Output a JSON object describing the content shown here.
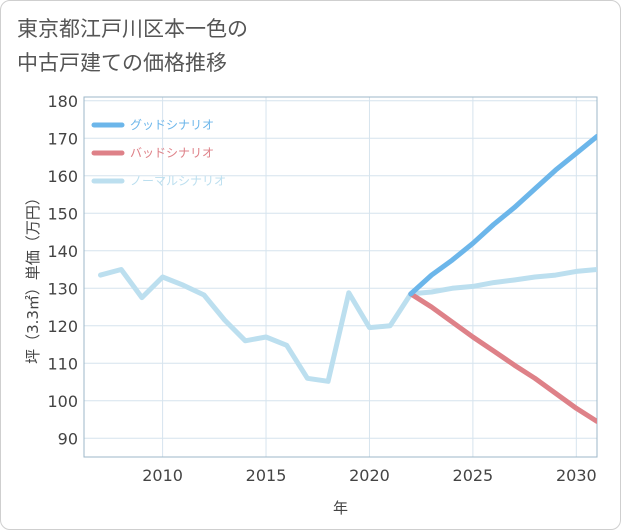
{
  "title_line1": "東京都江戸川区本一色の",
  "title_line2": "中古戸建ての価格推移",
  "chart_data": {
    "type": "line",
    "xlabel": "年",
    "ylabel": "坪（3.3㎡）単価（万円）",
    "xlim": [
      2006.2,
      2031
    ],
    "ylim": [
      85,
      181
    ],
    "x_ticks": [
      2010,
      2015,
      2020,
      2025,
      2030
    ],
    "y_ticks": [
      90,
      100,
      110,
      120,
      130,
      140,
      150,
      160,
      170,
      180
    ],
    "grid": true,
    "legend_position": "top-left",
    "series": [
      {
        "name": "グッドシナリオ",
        "color": "#6cb6ea",
        "x": [
          2022,
          2023,
          2024,
          2025,
          2026,
          2027,
          2028,
          2029,
          2030,
          2031
        ],
        "y": [
          128.5,
          133.5,
          137.5,
          142,
          147,
          151.5,
          156.5,
          161.5,
          166,
          170.5
        ]
      },
      {
        "name": "バッドシナリオ",
        "color": "#de8188",
        "x": [
          2022,
          2023,
          2024,
          2025,
          2026,
          2027,
          2028,
          2029,
          2030,
          2031
        ],
        "y": [
          128.5,
          125,
          121,
          117,
          113.3,
          109.5,
          106,
          102,
          98,
          94.5
        ]
      },
      {
        "name": "ノーマルシナリオ",
        "color": "#bcdfef",
        "x": [
          2007,
          2008,
          2009,
          2010,
          2011,
          2012,
          2013,
          2014,
          2015,
          2016,
          2017,
          2018,
          2019,
          2020,
          2021,
          2022,
          2023,
          2024,
          2025,
          2026,
          2027,
          2028,
          2029,
          2030,
          2031
        ],
        "y": [
          133.5,
          135,
          127.5,
          133,
          130.8,
          128.2,
          121.5,
          116,
          117,
          114.8,
          106,
          105.2,
          128.8,
          119.5,
          120,
          128.5,
          129,
          130,
          130.5,
          131.5,
          132.2,
          133,
          133.5,
          134.5,
          135
        ]
      }
    ]
  }
}
